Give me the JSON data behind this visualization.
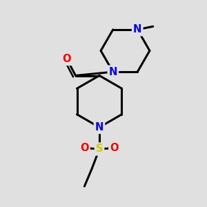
{
  "bg_color": "#e0e0e0",
  "bond_color": "#000000",
  "N_color": "#0000ff",
  "O_color": "#ff0000",
  "S_color": "#cccc00",
  "line_width": 2.2,
  "font_size_atom": 10.5,
  "fig_w": 3.0,
  "fig_h": 3.0,
  "dpi": 100,
  "xlim": [
    0,
    10
  ],
  "ylim": [
    0,
    10
  ]
}
